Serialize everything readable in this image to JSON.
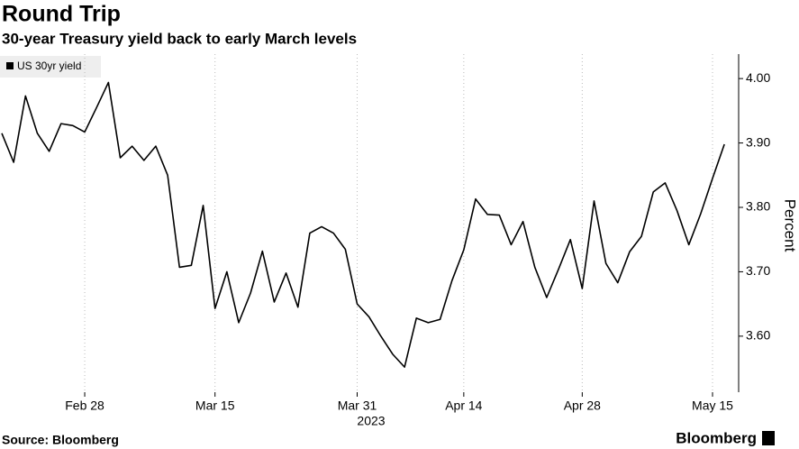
{
  "chart_data": {
    "type": "line",
    "title": "Round Trip",
    "subtitle": "30-year Treasury yield back to early March levels",
    "y_label": "Percent",
    "year_label": "2023",
    "source": "Source: Bloomberg",
    "brand": "Bloomberg",
    "categories": [
      null,
      null,
      null,
      null,
      null,
      null,
      null,
      "Feb 28",
      null,
      null,
      null,
      null,
      null,
      null,
      null,
      null,
      null,
      null,
      "Mar 15",
      null,
      null,
      null,
      null,
      null,
      null,
      null,
      null,
      null,
      null,
      null,
      "Mar 31",
      null,
      null,
      null,
      null,
      null,
      null,
      null,
      null,
      "Apr 14",
      null,
      null,
      null,
      null,
      null,
      null,
      null,
      null,
      null,
      "Apr 28",
      null,
      null,
      null,
      null,
      null,
      null,
      null,
      null,
      null,
      null,
      "May 15",
      null
    ],
    "series": [
      {
        "name": "US 30yr yield",
        "color": "#000000",
        "values": [
          3.915,
          3.87,
          3.973,
          3.915,
          3.887,
          3.93,
          3.927,
          3.917,
          3.955,
          3.994,
          3.877,
          3.895,
          3.873,
          3.895,
          3.85,
          3.707,
          3.71,
          3.803,
          3.643,
          3.7,
          3.621,
          3.667,
          3.732,
          3.653,
          3.698,
          3.645,
          3.76,
          3.77,
          3.76,
          3.735,
          3.65,
          3.63,
          3.6,
          3.572,
          3.552,
          3.628,
          3.621,
          3.626,
          3.686,
          3.734,
          3.813,
          3.789,
          3.788,
          3.742,
          3.778,
          3.707,
          3.66,
          3.704,
          3.75,
          3.674,
          3.81,
          3.713,
          3.683,
          3.731,
          3.755,
          3.824,
          3.838,
          3.795,
          3.742,
          3.79,
          3.845,
          3.898
        ]
      }
    ],
    "ylim": [
      3.513,
      4.038
    ],
    "yticks": [
      {
        "value": 3.6,
        "label": "3.60"
      },
      {
        "value": 3.7,
        "label": "3.70"
      },
      {
        "value": 3.8,
        "label": "3.80"
      },
      {
        "value": 3.9,
        "label": "3.90"
      },
      {
        "value": 4.0,
        "label": "4.00"
      }
    ],
    "grid": "x"
  }
}
